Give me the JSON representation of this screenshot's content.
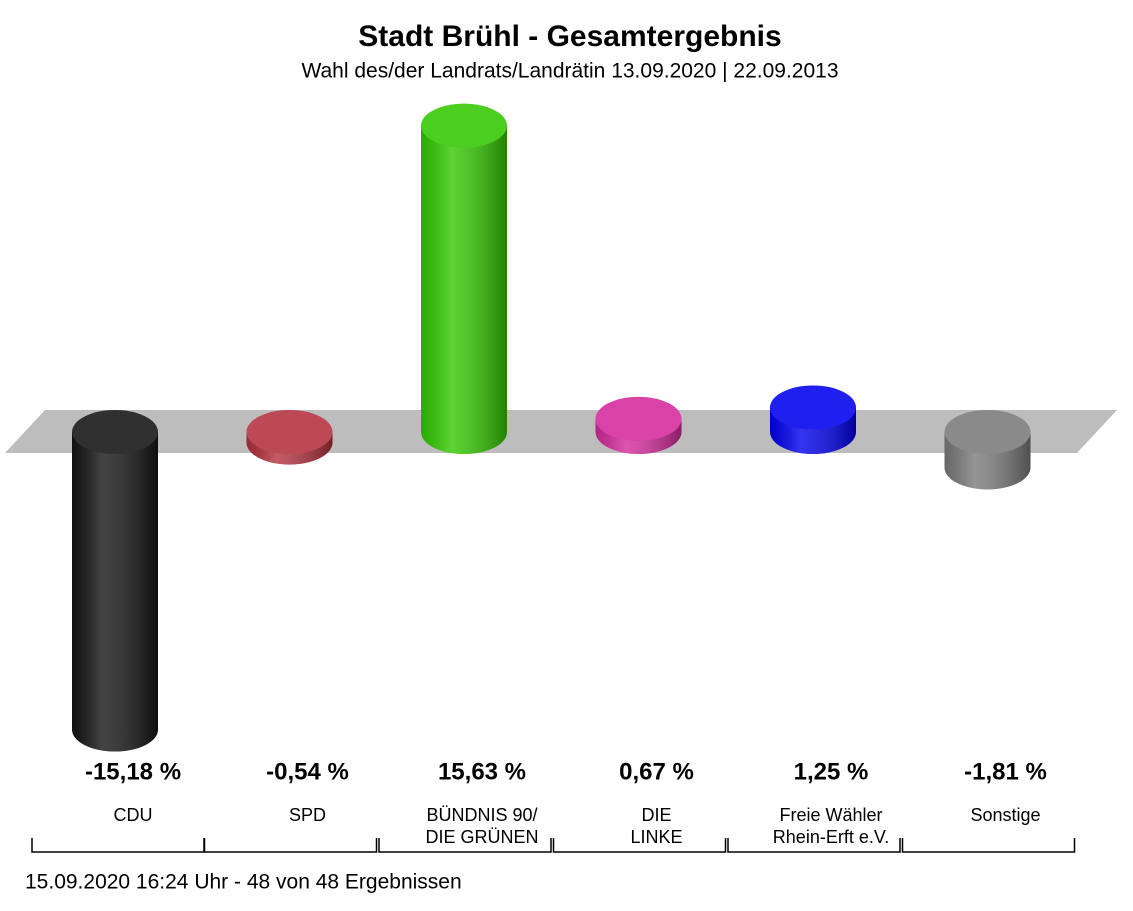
{
  "chart_data": {
    "type": "bar",
    "title": "Stadt Brühl - Gesamtergebnis",
    "subtitle": "Wahl des/der Landrats/Landrätin 13.09.2020  | 22.09.2013",
    "categories": [
      "CDU",
      "SPD",
      "BÜNDNIS 90/\nDIE GRÜNEN",
      "DIE\nLINKE",
      "Freie Wähler\nRhein-Erft e.V.",
      "Sonstige"
    ],
    "values": [
      -15.18,
      -0.54,
      15.63,
      0.67,
      1.25,
      -1.81
    ],
    "value_labels": [
      "-15,18 %",
      "-0,54 %",
      "15,63 %",
      "0,67 %",
      "1,25 %",
      "-1,81 %"
    ],
    "colors": [
      "#141414",
      "#b3303c",
      "#33c800",
      "#d42a9c",
      "#0000ee",
      "#7a7a7a"
    ],
    "footer": "15.09.2020 16:24 Uhr - 48 von 48 Ergebnissen"
  }
}
